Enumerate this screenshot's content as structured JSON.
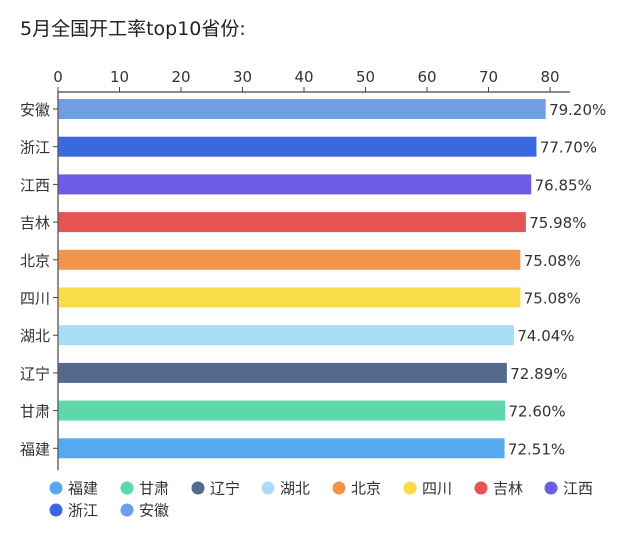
{
  "chart_data": {
    "type": "bar",
    "orientation": "horizontal",
    "title": "5月全国开工率top10省份:",
    "xlim": [
      0,
      80
    ],
    "x_ticks": [
      "0",
      "10",
      "20",
      "30",
      "40",
      "50",
      "60",
      "70",
      "80"
    ],
    "x_tick_values": [
      0,
      10,
      20,
      30,
      40,
      50,
      60,
      70,
      80
    ],
    "categories": [
      "安徽",
      "浙江",
      "江西",
      "吉林",
      "北京",
      "四川",
      "湖北",
      "辽宁",
      "甘肃",
      "福建"
    ],
    "values": [
      79.2,
      77.7,
      76.85,
      75.98,
      75.08,
      75.08,
      74.04,
      72.89,
      72.6,
      72.51
    ],
    "value_labels": [
      "79.20%",
      "77.70%",
      "76.85%",
      "75.98%",
      "75.08%",
      "75.08%",
      "74.04%",
      "72.89%",
      "72.60%",
      "72.51%"
    ],
    "colors": [
      "#6f9ee4",
      "#3a68e0",
      "#6d5ce6",
      "#e65353",
      "#f4944a",
      "#fadb4a",
      "#a9ddf7",
      "#55698f",
      "#5dd8aa",
      "#54a9ef"
    ],
    "legend": {
      "position": "bottom",
      "items": [
        {
          "label": "福建",
          "color": "#54a9ef"
        },
        {
          "label": "甘肃",
          "color": "#5dd8aa"
        },
        {
          "label": "辽宁",
          "color": "#55698f"
        },
        {
          "label": "湖北",
          "color": "#a9ddf7"
        },
        {
          "label": "北京",
          "color": "#f4944a"
        },
        {
          "label": "四川",
          "color": "#fadb4a"
        },
        {
          "label": "吉林",
          "color": "#e65353"
        },
        {
          "label": "江西",
          "color": "#6d5ce6"
        },
        {
          "label": "浙江",
          "color": "#3a68e0"
        },
        {
          "label": "安徽",
          "color": "#6f9ee4"
        }
      ]
    },
    "xlabel": "",
    "ylabel": "",
    "grid": false
  }
}
